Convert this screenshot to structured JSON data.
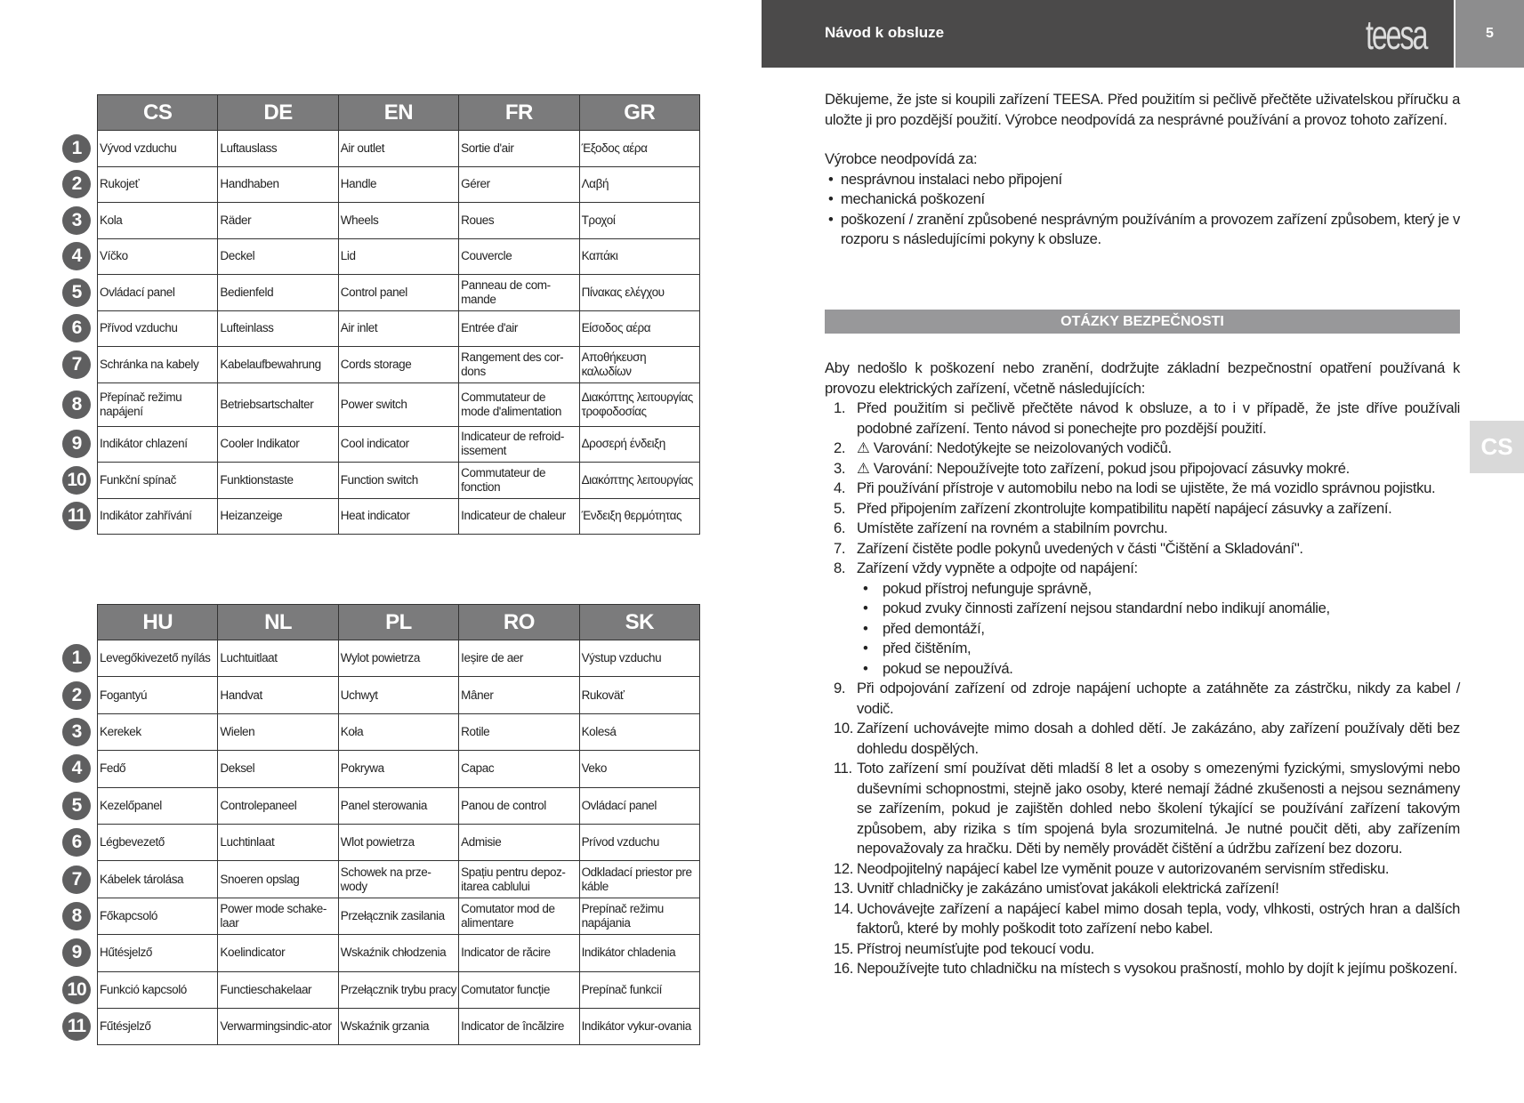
{
  "header": {
    "title": "Návod k obsluze",
    "logo": "teesa",
    "page_number": "5"
  },
  "side_tab": "CS",
  "table1": {
    "headers": [
      "CS",
      "DE",
      "EN",
      "FR",
      "GR"
    ],
    "rows": [
      [
        "Vývod vzduchu",
        "Luftauslass",
        "Air outlet",
        "Sortie d'air",
        "Έξοδος αέρα"
      ],
      [
        "Rukojeť",
        "Handhaben",
        "Handle",
        "Gérer",
        "Λαβή"
      ],
      [
        "Kola",
        "Räder",
        "Wheels",
        "Roues",
        "Τροχοί"
      ],
      [
        "Víčko",
        "Deckel",
        "Lid",
        "Couvercle",
        "Καπάκι"
      ],
      [
        "Ovládací panel",
        "Bedienfeld",
        "Control panel",
        "Panneau de com-mande",
        "Πίνακας ελέγχου"
      ],
      [
        "Přívod vzduchu",
        "Lufteinlass",
        "Air inlet",
        "Entrée d'air",
        "Είσοδος αέρα"
      ],
      [
        "Schránka na kabely",
        "Kabelaufbewahrung",
        "Cords storage",
        "Rangement des cor-dons",
        "Αποθήκευση καλωδίων"
      ],
      [
        "Přepínač režimu napájení",
        "Betriebsartschalter",
        "Power switch",
        "Commutateur de mode d'alimentation",
        "Διακόπτης λειτουργίας τροφοδοσίας"
      ],
      [
        "Indikátor chlazení",
        "Cooler Indikator",
        "Cool indicator",
        "Indicateur de refroid-issement",
        "Δροσερή ένδειξη"
      ],
      [
        "Funkční spínač",
        "Funktionstaste",
        "Function switch",
        "Commutateur de fonction",
        "Διακόπτης λειτουργίας"
      ],
      [
        "Indikátor zahřívání",
        "Heizanzeige",
        "Heat indicator",
        "Indicateur de chaleur",
        "Ένδειξη θερμότητας"
      ]
    ]
  },
  "table2": {
    "headers": [
      "HU",
      "NL",
      "PL",
      "RO",
      "SK"
    ],
    "rows": [
      [
        "Levegőkivezető nyílás",
        "Luchtuitlaat",
        "Wylot powietrza",
        "Ieșire de aer",
        "Výstup vzduchu"
      ],
      [
        "Fogantyú",
        "Handvat",
        "Uchwyt",
        "Mâner",
        "Rukoväť"
      ],
      [
        "Kerekek",
        "Wielen",
        "Koła",
        "Rotile",
        "Kolesá"
      ],
      [
        "Fedő",
        "Deksel",
        "Pokrywa",
        "Capac",
        "Veko"
      ],
      [
        "Kezelőpanel",
        "Controlepaneel",
        "Panel sterowania",
        "Panou de control",
        "Ovládací panel"
      ],
      [
        "Légbevezető",
        "Luchtinlaat",
        "Wlot powietrza",
        "Admisie",
        "Prívod vzduchu"
      ],
      [
        "Kábelek tárolása",
        "Snoeren opslag",
        "Schowek na prze-wody",
        "Spațiu pentru depoz-itarea cablului",
        "Odkladací priestor pre káble"
      ],
      [
        "Főkapcsoló",
        "Power mode schake-laar",
        "Przełącznik zasilania",
        "Comutator mod de alimentare",
        "Prepínač režimu napájania"
      ],
      [
        "Hűtésjelző",
        "Koelindicator",
        "Wskaźnik chłodzenia",
        "Indicator de răcire",
        "Indikátor chladenia"
      ],
      [
        "Funkció kapcsoló",
        "Functieschakelaar",
        "Przełącznik trybu pracy",
        "Comutator funcție",
        "Prepínač funkcií"
      ],
      [
        "Fűtésjelző",
        "Verwarmingsindic-ator",
        "Wskaźnik grzania",
        "Indicator de încălzire",
        "Indikátor vykur-ovania"
      ]
    ]
  },
  "intro": "Děkujeme, že jste si koupili zařízení TEESA. Před použitím si pečlivě přečtěte uživatelskou příručku a uložte ji pro pozdější použití. Výrobce neodpovídá za nesprávné používání a provoz tohoto zařízení.",
  "liability": {
    "lead": "Výrobce neodpovídá za:",
    "items": [
      "nesprávnou instalaci nebo připojení",
      "mechanická poškození",
      "poškození / zranění způsobené nesprávným používáním a provozem zařízení způsobem, který je v rozporu s následujícími pokyny k obsluze."
    ]
  },
  "section_title": "OTÁZKY BEZPEČNOSTI",
  "safety": {
    "lead": "Aby nedošlo k poškození nebo zranění, dodržujte základní bezpečnostní opatření používaná k provozu elektrických zařízení, včetně následujících:",
    "items": [
      {
        "n": "1.",
        "t": "Před použitím si pečlivě přečtěte návod k obsluze, a to i v případě, že jste dříve používali podobné zařízení. Tento návod si ponechejte pro pozdější použití."
      },
      {
        "n": "2.",
        "t": "⚠ Varování: Nedotýkejte se neizolovaných vodičů."
      },
      {
        "n": "3.",
        "t": "⚠ Varování: Nepoužívejte toto zařízení, pokud jsou připojovací zásuvky mokré."
      },
      {
        "n": "4.",
        "t": "Při používání přístroje v automobilu nebo na lodi se ujistěte, že má vozidlo správnou pojistku."
      },
      {
        "n": "5.",
        "t": "Před připojením zařízení zkontrolujte kompatibilitu napětí napájecí zásuvky a zařízení."
      },
      {
        "n": "6.",
        "t": "Umístěte zařízení na rovném a stabilním povrchu."
      },
      {
        "n": "7.",
        "t": "Zařízení čistěte podle pokynů uvedených v části \"Čištění a Skladování\"."
      },
      {
        "n": "8.",
        "t": "Zařízení vždy vypněte a odpojte od napájení:",
        "sub": [
          "pokud přístroj nefunguje správně,",
          "pokud zvuky činnosti zařízení nejsou standardní nebo indikují anomálie,",
          "před demontáží,",
          "před čištěním,",
          "pokud se nepoužívá."
        ]
      },
      {
        "n": "9.",
        "t": "Při odpojování zařízení od zdroje napájení uchopte a zatáhněte za zástrčku, nikdy za kabel / vodič."
      },
      {
        "n": "10.",
        "t": "Zařízení uchovávejte mimo dosah a dohled dětí. Je zakázáno, aby zařízení používaly děti bez dohledu dospělých."
      },
      {
        "n": "11.",
        "t": "Toto zařízení smí používat děti mladší 8 let a osoby s omezenými fyzickými, smyslovými nebo duševními schopnostmi, stejně jako osoby, které nemají žádné zkušenosti a nejsou seznámeny se zařízením, pokud je zajištěn dohled nebo školení týkající se používání zařízení takovým způsobem, aby rizika s tím spojená byla srozumitelná. Je nutné poučit děti, aby zařízením nepovažovaly za hračku. Děti by neměly provádět čištění a údržbu zařízení bez dozoru."
      },
      {
        "n": "12.",
        "t": "Neodpojitelný napájecí kabel lze vyměnit pouze v autorizovaném servisním středisku."
      },
      {
        "n": "13.",
        "t": "Uvnitř chladničky je zakázáno umisťovat jakákoli elektrická zařízení!"
      },
      {
        "n": "14.",
        "t": "Uchovávejte zařízení a napájecí kabel mimo dosah tepla, vody, vlhkosti, ostrých hran a dalších faktorů, které by mohly poškodit toto zařízení nebo kabel."
      },
      {
        "n": "15.",
        "t": "Přístroj neumísťujte pod tekoucí vodu."
      },
      {
        "n": "16.",
        "t": "Nepoužívejte tuto chladničku na místech s vysokou prašností, mohlo by dojít k jejímu poškození."
      }
    ]
  }
}
